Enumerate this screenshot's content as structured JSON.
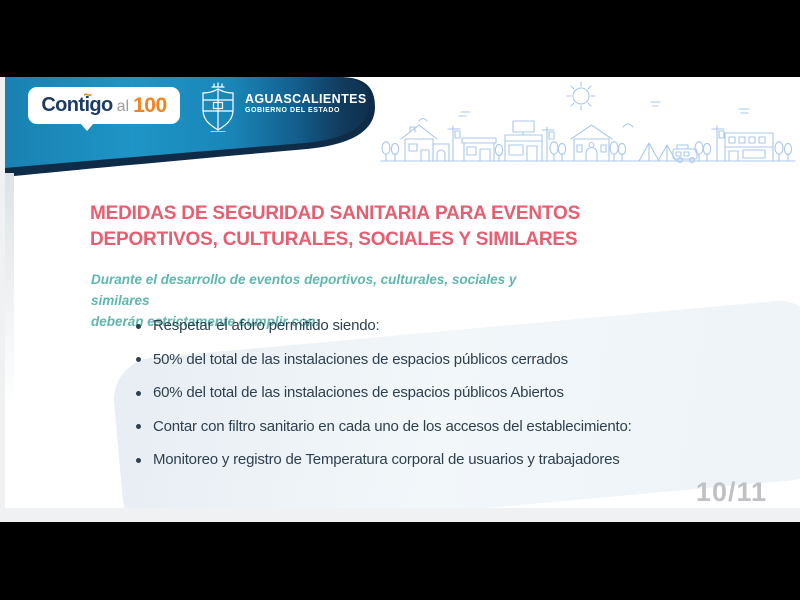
{
  "viewer": {
    "page_indicator": "10/11"
  },
  "header": {
    "logo": {
      "part1": "Contigo",
      "accent": "~",
      "part2": "al",
      "part3": "100"
    },
    "government": {
      "name": "AGUASCALIENTES",
      "subtitle": "GOBIERNO DEL ESTADO"
    }
  },
  "content": {
    "title_light": "MEDIDAS DE SEGURIDAD SANITARIA",
    "title_bold_line1": "PARA EVENTOS",
    "title_bold_line2": "DEPORTIVOS, CULTURALES, SOCIALES Y SIMILARES",
    "subtitle_line1": "Durante el desarrollo de eventos deportivos, culturales, sociales y similares",
    "subtitle_line2": "deberán estrictamente cumplir con:",
    "bullets": [
      "Respetar el aforo permitido siendo:",
      "50% del total de las instalaciones de espacios públicos cerrados",
      "60% del total de las instalaciones de espacios públicos Abiertos",
      "Contar con filtro sanitario en cada uno de los accesos del establecimiento:",
      "Monitoreo y registro de Temperatura corporal de usuarios y trabajadores"
    ]
  },
  "colors": {
    "banner_teal": "#1e93c3",
    "banner_navy": "#0e2c47",
    "title_pink": "#e85d70",
    "subtitle_teal": "#5fb7b0",
    "body_text": "#2e3f4e",
    "skyline_blue": "#aac8ec",
    "logo_navy": "#1d3c63",
    "logo_orange": "#f5821f",
    "logo_gray": "#9aa0a5",
    "page_number_gray": "#bfc1c4",
    "panel_blue": "#e9eff4",
    "viewer_strip": "#f0f1f2"
  }
}
